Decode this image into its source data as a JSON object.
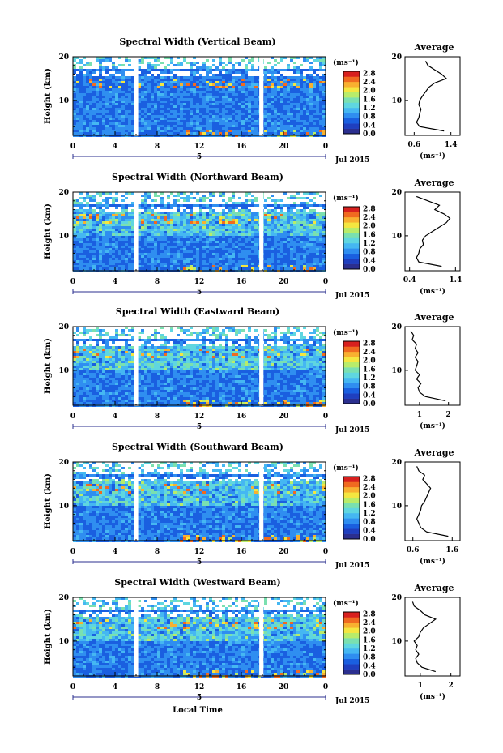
{
  "figure": {
    "xlabel": "Local Time",
    "ylabel": "Height (km)",
    "average_title": "Average",
    "unit_label": "(ms⁻¹)",
    "avg_unit_label": "(ms⁻¹)",
    "date_label": "Jul 2015",
    "day_label": "5"
  },
  "colors": {
    "scale": [
      "#2b2f8f",
      "#1f3fbf",
      "#1a5fe0",
      "#2f8ef0",
      "#45b7f2",
      "#5fd6e0",
      "#7ae0b0",
      "#b8ec6a",
      "#f4e640",
      "#f8b030",
      "#f06a20",
      "#d8201e"
    ]
  },
  "chart_data": [
    {
      "type": "heatmap",
      "title": "Spectral Width (Vertical Beam)",
      "xlabel": "",
      "ylabel": "Height (km)",
      "x_ticks": [
        "0",
        "4",
        "8",
        "12",
        "16",
        "20",
        "0"
      ],
      "y_ticks": [
        "20",
        "10"
      ],
      "xlim": [
        0,
        24
      ],
      "ylim": [
        2,
        20
      ],
      "data_gaps_hours": [
        [
          5.8,
          6.2
        ],
        [
          17.7,
          18.1
        ]
      ],
      "colorbar": {
        "unit": "(ms⁻¹)",
        "ticks": [
          "2.8",
          "2.4",
          "2.0",
          "1.6",
          "1.2",
          "0.8",
          "0.4",
          "0.0"
        ],
        "range": [
          0,
          2.8
        ]
      },
      "average": {
        "title": "Average",
        "xlabel": "(ms⁻¹)",
        "x_ticks": [
          "0.6",
          "1.4"
        ],
        "xlim": [
          0.4,
          1.6
        ],
        "y_ticks": [
          "20",
          "10"
        ],
        "height": [
          3,
          4,
          5,
          6,
          7,
          8,
          9,
          10,
          11,
          12,
          13,
          14,
          15,
          16,
          17,
          18,
          19
        ],
        "value": [
          1.25,
          0.72,
          0.65,
          0.7,
          0.72,
          0.75,
          0.7,
          0.72,
          0.78,
          0.85,
          0.92,
          1.05,
          1.3,
          1.2,
          1.05,
          0.9,
          0.85
        ]
      }
    },
    {
      "type": "heatmap",
      "title": "Spectral Width (Northward Beam)",
      "xlabel": "",
      "ylabel": "Height (km)",
      "x_ticks": [
        "0",
        "4",
        "8",
        "12",
        "16",
        "20",
        "0"
      ],
      "y_ticks": [
        "20",
        "10"
      ],
      "xlim": [
        0,
        24
      ],
      "ylim": [
        2,
        20
      ],
      "data_gaps_hours": [
        [
          5.8,
          6.2
        ],
        [
          17.7,
          18.1
        ]
      ],
      "colorbar": {
        "unit": "(ms⁻¹)",
        "ticks": [
          "2.8",
          "2.4",
          "2.0",
          "1.6",
          "1.2",
          "0.8",
          "0.4",
          "0.0"
        ],
        "range": [
          0,
          2.8
        ]
      },
      "average": {
        "title": "Average",
        "xlabel": "(ms⁻¹)",
        "x_ticks": [
          "0.4",
          "1.4"
        ],
        "xlim": [
          0.3,
          1.5
        ],
        "y_ticks": [
          "20",
          "10"
        ],
        "height": [
          3,
          4,
          5,
          6,
          7,
          8,
          9,
          10,
          11,
          12,
          13,
          14,
          15,
          16,
          17,
          18,
          19
        ],
        "value": [
          1.1,
          0.6,
          0.55,
          0.6,
          0.62,
          0.7,
          0.68,
          0.75,
          0.9,
          1.05,
          1.2,
          1.28,
          1.15,
          0.95,
          1.05,
          0.8,
          0.55
        ]
      }
    },
    {
      "type": "heatmap",
      "title": "Spectral Width (Eastward Beam)",
      "xlabel": "",
      "ylabel": "Height (km)",
      "x_ticks": [
        "0",
        "4",
        "8",
        "12",
        "16",
        "20",
        "0"
      ],
      "y_ticks": [
        "20",
        "10"
      ],
      "xlim": [
        0,
        24
      ],
      "ylim": [
        2,
        20
      ],
      "data_gaps_hours": [
        [
          5.8,
          6.2
        ],
        [
          17.7,
          18.1
        ]
      ],
      "colorbar": {
        "unit": "(ms⁻¹)",
        "ticks": [
          "2.8",
          "2.4",
          "2.0",
          "1.6",
          "1.2",
          "0.8",
          "0.4",
          "0.0"
        ],
        "range": [
          0,
          2.8
        ]
      },
      "average": {
        "title": "Average",
        "xlabel": "(ms⁻¹)",
        "x_ticks": [
          "1",
          "2"
        ],
        "xlim": [
          0.5,
          2.4
        ],
        "y_ticks": [
          "20",
          "10"
        ],
        "height": [
          3,
          4,
          5,
          6,
          7,
          8,
          9,
          10,
          11,
          12,
          13,
          14,
          15,
          16,
          17,
          18,
          19
        ],
        "value": [
          1.9,
          1.2,
          1.0,
          0.95,
          1.05,
          0.9,
          1.0,
          0.85,
          0.9,
          0.95,
          0.85,
          0.95,
          0.85,
          0.9,
          0.75,
          0.8,
          0.7
        ]
      }
    },
    {
      "type": "heatmap",
      "title": "Spectral Width (Southward Beam)",
      "xlabel": "",
      "ylabel": "Height (km)",
      "x_ticks": [
        "0",
        "4",
        "8",
        "12",
        "16",
        "20",
        "0"
      ],
      "y_ticks": [
        "20",
        "10"
      ],
      "xlim": [
        0,
        24
      ],
      "ylim": [
        2,
        20
      ],
      "data_gaps_hours": [
        [
          5.8,
          6.2
        ],
        [
          17.7,
          18.1
        ]
      ],
      "colorbar": {
        "unit": "(ms⁻¹)",
        "ticks": [
          "2.8",
          "2.4",
          "2.0",
          "1.6",
          "1.2",
          "0.8",
          "0.4",
          "0.0"
        ],
        "range": [
          0,
          2.8
        ]
      },
      "average": {
        "title": "Average",
        "xlabel": "(ms⁻¹)",
        "x_ticks": [
          "0.6",
          "1.6"
        ],
        "xlim": [
          0.4,
          1.8
        ],
        "y_ticks": [
          "20",
          "10"
        ],
        "height": [
          3,
          4,
          5,
          6,
          7,
          8,
          9,
          10,
          11,
          12,
          13,
          14,
          15,
          16,
          17,
          18,
          19
        ],
        "value": [
          1.5,
          0.95,
          0.8,
          0.75,
          0.7,
          0.75,
          0.8,
          0.82,
          0.9,
          0.95,
          1.0,
          1.05,
          0.95,
          0.85,
          0.9,
          0.75,
          0.7
        ]
      }
    },
    {
      "type": "heatmap",
      "title": "Spectral Width (Westward Beam)",
      "xlabel": "Local Time",
      "ylabel": "Height (km)",
      "x_ticks": [
        "0",
        "4",
        "8",
        "12",
        "16",
        "20",
        "0"
      ],
      "y_ticks": [
        "20",
        "10"
      ],
      "xlim": [
        0,
        24
      ],
      "ylim": [
        2,
        20
      ],
      "data_gaps_hours": [
        [
          5.8,
          6.2
        ],
        [
          17.7,
          18.1
        ]
      ],
      "colorbar": {
        "unit": "(ms⁻¹)",
        "ticks": [
          "2.8",
          "2.4",
          "2.0",
          "1.6",
          "1.2",
          "0.8",
          "0.4",
          "0.0"
        ],
        "range": [
          0,
          2.8
        ]
      },
      "average": {
        "title": "Average",
        "xlabel": "(ms⁻¹)",
        "x_ticks": [
          "1",
          "2"
        ],
        "xlim": [
          0.5,
          2.3
        ],
        "y_ticks": [
          "20",
          "10"
        ],
        "height": [
          3,
          4,
          5,
          6,
          7,
          8,
          9,
          10,
          11,
          12,
          13,
          14,
          15,
          16,
          17,
          18,
          19
        ],
        "value": [
          1.5,
          1.05,
          0.9,
          0.85,
          0.95,
          0.85,
          0.9,
          0.8,
          0.95,
          1.0,
          1.1,
          1.3,
          1.5,
          1.15,
          1.0,
          0.8,
          0.75
        ]
      }
    }
  ]
}
